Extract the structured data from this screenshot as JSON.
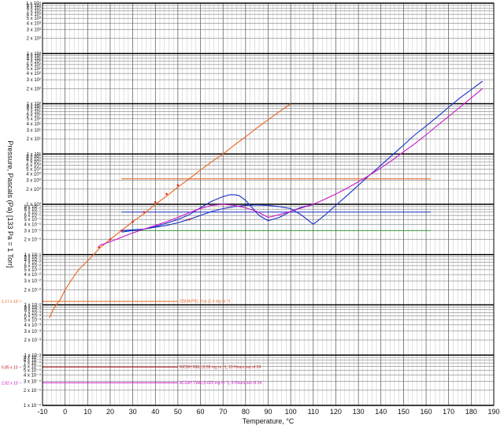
{
  "chart_data": {
    "type": "line",
    "title": "",
    "xlabel": "Temperature, °C",
    "ylabel": "Pressure, Pascals (Pa) [133 Pa = 1 Torr]",
    "xlim": [
      -10,
      190
    ],
    "ylim": [
      0.0001,
      10000
    ],
    "y_scale": "log",
    "grid": true,
    "x_ticks": [
      "-10",
      "0",
      "10",
      "20",
      "30",
      "40",
      "50",
      "60",
      "70",
      "80",
      "90",
      "100",
      "110",
      "120",
      "130",
      "140",
      "150",
      "160",
      "170",
      "180",
      "190"
    ],
    "y_ticks": [
      {
        "v": 0.0001,
        "t": "1 x 10⁻⁴"
      },
      {
        "v": 0.0002,
        "t": "2 x 10⁻⁴"
      },
      {
        "v": 0.0003,
        "t": "3 x 10⁻⁴"
      },
      {
        "v": 0.0004,
        "t": "4 x 10⁻⁴"
      },
      {
        "v": 0.0005,
        "t": "5 x 10⁻⁴"
      },
      {
        "v": 0.0006,
        "t": "6 x 10⁻⁴"
      },
      {
        "v": 0.0007,
        "t": "7 x 10⁻⁴"
      },
      {
        "v": 0.0008,
        "t": "8 x 10⁻⁴"
      },
      {
        "v": 0.0009,
        "t": "9 x 10⁻⁴"
      },
      {
        "v": 0.001,
        "t": "1 x 10⁻³"
      },
      {
        "v": 0.002,
        "t": "2 x 10⁻³"
      },
      {
        "v": 0.003,
        "t": "3 x 10⁻³"
      },
      {
        "v": 0.004,
        "t": "4 x 10⁻³"
      },
      {
        "v": 0.005,
        "t": "5 x 10⁻³"
      },
      {
        "v": 0.006,
        "t": "6 x 10⁻³"
      },
      {
        "v": 0.007,
        "t": "7 x 10⁻³"
      },
      {
        "v": 0.008,
        "t": "8 x 10⁻³"
      },
      {
        "v": 0.009,
        "t": "9 x 10⁻³"
      },
      {
        "v": 0.01,
        "t": "1 x 10⁻²"
      },
      {
        "v": 0.02,
        "t": "2 x 10⁻²"
      },
      {
        "v": 0.03,
        "t": "3 x 10⁻²"
      },
      {
        "v": 0.04,
        "t": "4 x 10⁻²"
      },
      {
        "v": 0.05,
        "t": "5 x 10⁻²"
      },
      {
        "v": 0.06,
        "t": "6 x 10⁻²"
      },
      {
        "v": 0.07,
        "t": "7 x 10⁻²"
      },
      {
        "v": 0.08,
        "t": "8 x 10⁻²"
      },
      {
        "v": 0.09,
        "t": "9 x 10⁻²"
      },
      {
        "v": 0.1,
        "t": "1 x 10⁻¹"
      },
      {
        "v": 0.2,
        "t": "2 x 10⁻¹"
      },
      {
        "v": 0.3,
        "t": "3 x 10⁻¹"
      },
      {
        "v": 0.4,
        "t": "4 x 10⁻¹"
      },
      {
        "v": 0.5,
        "t": "5 x 10⁻¹"
      },
      {
        "v": 0.6,
        "t": "6 x 10⁻¹"
      },
      {
        "v": 0.7,
        "t": "7 x 10⁻¹"
      },
      {
        "v": 0.8,
        "t": "8 x 10⁻¹"
      },
      {
        "v": 0.9,
        "t": "9 x 10⁻¹"
      },
      {
        "v": 1,
        "t": "1 x 10⁰"
      },
      {
        "v": 2,
        "t": "2 x 10⁰"
      },
      {
        "v": 3,
        "t": "3 x 10⁰"
      },
      {
        "v": 4,
        "t": "4 x 10⁰"
      },
      {
        "v": 5,
        "t": "5 x 10⁰"
      },
      {
        "v": 6,
        "t": "6 x 10⁰"
      },
      {
        "v": 7,
        "t": "7 x 10⁰"
      },
      {
        "v": 8,
        "t": "8 x 10⁰"
      },
      {
        "v": 9,
        "t": "9 x 10⁰"
      },
      {
        "v": 10,
        "t": "1 x 10¹"
      },
      {
        "v": 20,
        "t": "2 x 10¹"
      },
      {
        "v": 30,
        "t": "3 x 10¹"
      },
      {
        "v": 40,
        "t": "4 x 10¹"
      },
      {
        "v": 50,
        "t": "5 x 10¹"
      },
      {
        "v": 60,
        "t": "6 x 10¹"
      },
      {
        "v": 70,
        "t": "7 x 10¹"
      },
      {
        "v": 80,
        "t": "8 x 10¹"
      },
      {
        "v": 90,
        "t": "9 x 10¹"
      },
      {
        "v": 100,
        "t": "1 x 10²"
      },
      {
        "v": 200,
        "t": "2 x 10²"
      },
      {
        "v": 300,
        "t": "3 x 10²"
      },
      {
        "v": 400,
        "t": "4 x 10²"
      },
      {
        "v": 500,
        "t": "5 x 10²"
      },
      {
        "v": 600,
        "t": "6 x 10²"
      },
      {
        "v": 700,
        "t": "7 x 10²"
      },
      {
        "v": 800,
        "t": "8 x 10²"
      },
      {
        "v": 900,
        "t": "9 x 10²"
      },
      {
        "v": 1000,
        "t": "1 x 10³"
      },
      {
        "v": 2000,
        "t": "2 x 10³"
      },
      {
        "v": 3000,
        "t": "3 x 10³"
      },
      {
        "v": 4000,
        "t": "4 x 10³"
      },
      {
        "v": 5000,
        "t": "5 x 10³"
      },
      {
        "v": 6000,
        "t": "6 x 10³"
      },
      {
        "v": 7000,
        "t": "7 x 10³"
      },
      {
        "v": 8000,
        "t": "8 x 10³"
      },
      {
        "v": 9000,
        "t": "9 x 10³"
      },
      {
        "v": 10000,
        "t": "1 x 10⁴"
      }
    ],
    "series": [
      {
        "color": "#e8641e",
        "x": [
          -7,
          -5,
          -2,
          0,
          3,
          6,
          10,
          15,
          20,
          25,
          30,
          35,
          40,
          45,
          50,
          55,
          60,
          65,
          70,
          75,
          80,
          85,
          90,
          95,
          100
        ],
        "y": [
          0.0055,
          0.0085,
          0.013,
          0.02,
          0.032,
          0.05,
          0.075,
          0.13,
          0.2,
          0.3,
          0.45,
          0.65,
          1.0,
          1.45,
          2.2,
          3.2,
          4.8,
          7,
          10,
          15,
          22,
          33,
          48,
          70,
          100
        ]
      },
      {
        "color": "#1a2fc8",
        "x": [
          25,
          30,
          35,
          40,
          45,
          50,
          55,
          60,
          65,
          70,
          75,
          80,
          85,
          90,
          95,
          100,
          105,
          110,
          115,
          120,
          125,
          130,
          135,
          140,
          145,
          150,
          155,
          160,
          165,
          170,
          175,
          180,
          185
        ],
        "y": [
          0.3,
          0.31,
          0.32,
          0.35,
          0.38,
          0.43,
          0.5,
          0.6,
          0.72,
          0.82,
          0.9,
          0.95,
          0.97,
          0.95,
          0.9,
          0.82,
          0.6,
          0.4,
          0.6,
          0.95,
          1.5,
          2.4,
          3.8,
          6,
          9.5,
          15,
          24,
          36,
          55,
          85,
          130,
          190,
          280
        ]
      },
      {
        "color": "#1a2fc8",
        "x": [
          25,
          30,
          35,
          40,
          45,
          50,
          55,
          60,
          65,
          70,
          73,
          75,
          77,
          80,
          83,
          86,
          90,
          95,
          100,
          105,
          110
        ],
        "y": [
          0.28,
          0.3,
          0.32,
          0.36,
          0.42,
          0.5,
          0.62,
          0.85,
          1.15,
          1.42,
          1.55,
          1.55,
          1.5,
          1.2,
          0.85,
          0.6,
          0.47,
          0.55,
          0.72,
          0.88,
          0.98
        ]
      },
      {
        "color": "#c817c8",
        "x": [
          15,
          20,
          25,
          30,
          35,
          40,
          45,
          50,
          55,
          60,
          65,
          70,
          75,
          80,
          85,
          90,
          95,
          100,
          105,
          110,
          115,
          120,
          125,
          130,
          135,
          140,
          145,
          150,
          155,
          160,
          165,
          170,
          175,
          180,
          185
        ],
        "y": [
          0.15,
          0.18,
          0.22,
          0.27,
          0.32,
          0.38,
          0.45,
          0.55,
          0.68,
          0.82,
          0.95,
          1.0,
          0.95,
          0.85,
          0.72,
          0.55,
          0.62,
          0.72,
          0.85,
          1.0,
          1.25,
          1.6,
          2.1,
          2.8,
          3.8,
          5.3,
          7.5,
          11,
          16,
          24,
          37,
          56,
          85,
          130,
          200
        ]
      }
    ],
    "scatter_points": {
      "color": "#e0241e",
      "x": [
        15,
        20,
        25,
        30,
        35,
        40,
        45,
        50,
        55
      ],
      "y": [
        0.14,
        0.2,
        0.3,
        0.45,
        0.7,
        1.1,
        1.6,
        2.4,
        0.5
      ]
    },
    "reference_lines": [
      {
        "y": 0.0117,
        "color": "#e8641e",
        "label": "OSHA PEL Ksa (1.4 mg m⁻³)",
        "value_label": "1.17 x 10⁻²"
      },
      {
        "y": 0.00058,
        "color": "#c02020",
        "label": "NIOSH REL (0.55 mg m⁻³), 10 Hours out of 24",
        "value_label": "5.85 x 10⁻⁴"
      },
      {
        "y": 0.000282,
        "color": "#c817c8",
        "label": "ACGIH TWA (0.025 mg m⁻³), 8 Hours out of 24",
        "value_label": "2.82 x 10⁻⁴"
      },
      {
        "y": 3.2,
        "color": "#e8641e",
        "label": "",
        "value_label": ""
      },
      {
        "y": 0.7,
        "color": "#1a2fc8",
        "label": "",
        "value_label": ""
      },
      {
        "y": 0.3,
        "color": "#3a9a3a",
        "label": "",
        "value_label": ""
      }
    ]
  }
}
